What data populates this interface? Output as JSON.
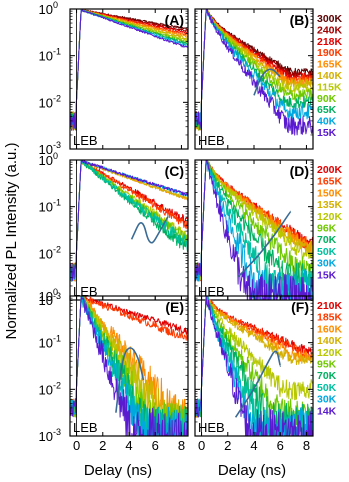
{
  "figure": {
    "ylabel": "Normalized PL Intensity (a.u.)",
    "xlabel": "Delay (ns)"
  },
  "chart_data": [
    {
      "id": "A",
      "type": "line",
      "letter": "(A)",
      "corner_label": "LEB",
      "xlim": [
        -0.5,
        8.5
      ],
      "ylim": [
        -3,
        0
      ],
      "y_scale": "log",
      "x_ticks": [
        "0",
        "2",
        "4",
        "6",
        "8"
      ],
      "y_ticks": [
        "10^0",
        "10^-1",
        "10^-2",
        "10^-3"
      ],
      "y_ticklabels": [
        "10",
        "10",
        "10",
        "10"
      ],
      "y_tickexps": [
        "0",
        "-1",
        "-2",
        "-3"
      ],
      "series": [
        {
          "label": "300K",
          "color": "#5a0000",
          "decay_per_ns": 0.05,
          "floor": -1.6,
          "noise": 0.02,
          "rise": "slow"
        },
        {
          "label": "240K",
          "color": "#a00000",
          "decay_per_ns": 0.055,
          "floor": -1.6,
          "noise": 0.02,
          "rise": "slow"
        },
        {
          "label": "218K",
          "color": "#e00000",
          "decay_per_ns": 0.06,
          "floor": -1.6,
          "noise": 0.02,
          "rise": "slow"
        },
        {
          "label": "190K",
          "color": "#ff3a00",
          "decay_per_ns": 0.065,
          "floor": -1.6,
          "noise": 0.02,
          "rise": "slow"
        },
        {
          "label": "165K",
          "color": "#ff8c00",
          "decay_per_ns": 0.07,
          "floor": -1.6,
          "noise": 0.02,
          "rise": "slow"
        },
        {
          "label": "140K",
          "color": "#d4b000",
          "decay_per_ns": 0.075,
          "floor": -1.6,
          "noise": 0.02,
          "rise": "slow"
        },
        {
          "label": "115K",
          "color": "#b7c800",
          "decay_per_ns": 0.08,
          "floor": -1.6,
          "noise": 0.02,
          "rise": "slow"
        },
        {
          "label": "90K",
          "color": "#6fc800",
          "decay_per_ns": 0.085,
          "floor": -1.6,
          "noise": 0.02,
          "rise": "slow"
        },
        {
          "label": "65K",
          "color": "#00b060",
          "decay_per_ns": 0.09,
          "floor": -1.6,
          "noise": 0.02,
          "rise": "slow"
        },
        {
          "label": "40K",
          "color": "#00a8e0",
          "decay_per_ns": 0.095,
          "floor": -1.6,
          "noise": 0.02,
          "rise": "slow"
        },
        {
          "label": "15K",
          "color": "#5a1ad0",
          "decay_per_ns": 0.1,
          "floor": -1.6,
          "noise": 0.02,
          "rise": "slow"
        }
      ],
      "arrow": null
    },
    {
      "id": "B",
      "type": "line",
      "letter": "(B)",
      "corner_label": "HEB",
      "xlim": [
        -0.5,
        8.5
      ],
      "ylim": [
        -3,
        0
      ],
      "y_scale": "log",
      "x_ticks": [
        "0",
        "2",
        "4",
        "6",
        "8"
      ],
      "series": [
        {
          "label": "300K",
          "color": "#5a0000",
          "decay_per_ns": 0.17,
          "floor": -1.35,
          "noise": 0.04,
          "rise": "fast"
        },
        {
          "label": "240K",
          "color": "#a00000",
          "decay_per_ns": 0.18,
          "floor": -1.4,
          "noise": 0.04,
          "rise": "fast"
        },
        {
          "label": "218K",
          "color": "#e00000",
          "decay_per_ns": 0.19,
          "floor": -1.45,
          "noise": 0.04,
          "rise": "fast"
        },
        {
          "label": "190K",
          "color": "#ff3a00",
          "decay_per_ns": 0.2,
          "floor": -1.5,
          "noise": 0.04,
          "rise": "fast"
        },
        {
          "label": "165K",
          "color": "#ff8c00",
          "decay_per_ns": 0.21,
          "floor": -1.55,
          "noise": 0.04,
          "rise": "fast"
        },
        {
          "label": "140K",
          "color": "#d4b000",
          "decay_per_ns": 0.22,
          "floor": -1.6,
          "noise": 0.04,
          "rise": "fast"
        },
        {
          "label": "115K",
          "color": "#b7c800",
          "decay_per_ns": 0.24,
          "floor": -1.7,
          "noise": 0.04,
          "rise": "fast"
        },
        {
          "label": "90K",
          "color": "#6fc800",
          "decay_per_ns": 0.26,
          "floor": -1.85,
          "noise": 0.05,
          "rise": "fast"
        },
        {
          "label": "65K",
          "color": "#00b060",
          "decay_per_ns": 0.29,
          "floor": -2.0,
          "noise": 0.05,
          "rise": "fast"
        },
        {
          "label": "40K",
          "color": "#00a8e0",
          "decay_per_ns": 0.32,
          "floor": -2.2,
          "noise": 0.06,
          "rise": "fast"
        },
        {
          "label": "15K",
          "color": "#5a1ad0",
          "decay_per_ns": 0.36,
          "floor": -2.5,
          "noise": 0.06,
          "rise": "fast"
        }
      ],
      "arrow": {
        "points": [
          [
            4.0,
            -1.85
          ],
          [
            4.6,
            -1.4
          ],
          [
            5.3,
            -1.25
          ],
          [
            6.0,
            -1.45
          ]
        ]
      }
    },
    {
      "id": "C",
      "type": "line",
      "letter": "(C)",
      "corner_label": "LEB",
      "xlim": [
        -0.5,
        8.5
      ],
      "ylim": [
        -3,
        0
      ],
      "y_scale": "log",
      "x_ticks": [
        "0",
        "2",
        "4",
        "6",
        "8"
      ],
      "y_ticks": [
        "10^0",
        "10^-1",
        "10^-2",
        "10^-3"
      ],
      "y_ticklabels": [
        "10",
        "10",
        "10",
        "10"
      ],
      "y_tickexps": [
        "0",
        "-1",
        "-2",
        "-3"
      ],
      "series": [
        {
          "label": "200K",
          "color": "#e00000",
          "decay_per_ns": 0.16,
          "floor": -2.0,
          "noise": 0.05,
          "rise": "slow"
        },
        {
          "label": "165K",
          "color": "#ff3a00",
          "decay_per_ns": 0.17,
          "floor": -2.0,
          "noise": 0.05,
          "rise": "slow"
        },
        {
          "label": "150K",
          "color": "#ff8c00",
          "decay_per_ns": 0.1,
          "floor": -1.1,
          "noise": 0.03,
          "rise": "slow"
        },
        {
          "label": "135K",
          "color": "#d4b000",
          "decay_per_ns": 0.1,
          "floor": -1.1,
          "noise": 0.03,
          "rise": "slow"
        },
        {
          "label": "120K",
          "color": "#b7c800",
          "decay_per_ns": 0.2,
          "floor": -1.9,
          "noise": 0.05,
          "rise": "slow"
        },
        {
          "label": "96K",
          "color": "#6fc800",
          "decay_per_ns": 0.21,
          "floor": -1.9,
          "noise": 0.05,
          "rise": "slow"
        },
        {
          "label": "70K",
          "color": "#00b060",
          "decay_per_ns": 0.23,
          "floor": -2.0,
          "noise": 0.06,
          "rise": "slow"
        },
        {
          "label": "50K",
          "color": "#00c0a0",
          "decay_per_ns": 0.22,
          "floor": -2.0,
          "noise": 0.06,
          "rise": "slow"
        },
        {
          "label": "30K",
          "color": "#00a8e0",
          "decay_per_ns": 0.09,
          "floor": -1.0,
          "noise": 0.03,
          "rise": "slow"
        },
        {
          "label": "15K",
          "color": "#5a1ad0",
          "decay_per_ns": 0.09,
          "floor": -1.0,
          "noise": 0.03,
          "rise": "slow"
        }
      ],
      "arrow": {
        "points": [
          [
            4.2,
            -1.7
          ],
          [
            5.0,
            -1.2
          ],
          [
            5.6,
            -1.9
          ],
          [
            6.4,
            -1.5
          ],
          [
            7.0,
            -1.2
          ]
        ]
      }
    },
    {
      "id": "D",
      "type": "line",
      "letter": "(D)",
      "corner_label": "HEB",
      "xlim": [
        -0.5,
        8.5
      ],
      "ylim": [
        -3,
        0
      ],
      "y_scale": "log",
      "x_ticks": [
        "0",
        "2",
        "4",
        "6",
        "8"
      ],
      "series": [
        {
          "label": "200K",
          "color": "#e00000",
          "decay_per_ns": 0.2,
          "floor": -1.8,
          "noise": 0.06,
          "rise": "fast"
        },
        {
          "label": "165K",
          "color": "#ff3a00",
          "decay_per_ns": 0.2,
          "floor": -1.8,
          "noise": 0.06,
          "rise": "fast"
        },
        {
          "label": "150K",
          "color": "#ff8c00",
          "decay_per_ns": 0.21,
          "floor": -1.9,
          "noise": 0.06,
          "rise": "fast"
        },
        {
          "label": "135K",
          "color": "#d4b000",
          "decay_per_ns": 0.22,
          "floor": -1.9,
          "noise": 0.06,
          "rise": "fast"
        },
        {
          "label": "120K",
          "color": "#b7c800",
          "decay_per_ns": 0.24,
          "floor": -2.0,
          "noise": 0.06,
          "rise": "fast"
        },
        {
          "label": "96K",
          "color": "#6fc800",
          "decay_per_ns": 0.3,
          "floor": -2.3,
          "noise": 0.08,
          "rise": "fast"
        },
        {
          "label": "70K",
          "color": "#00b060",
          "decay_per_ns": 0.38,
          "floor": -2.5,
          "noise": 0.09,
          "rise": "fast"
        },
        {
          "label": "50K",
          "color": "#00c0a0",
          "decay_per_ns": 0.5,
          "floor": -2.7,
          "noise": 0.1,
          "rise": "fast"
        },
        {
          "label": "30K",
          "color": "#00a8e0",
          "decay_per_ns": 0.65,
          "floor": -2.8,
          "noise": 0.12,
          "rise": "fast"
        },
        {
          "label": "15K",
          "color": "#5a1ad0",
          "decay_per_ns": 0.85,
          "floor": -2.9,
          "noise": 0.12,
          "rise": "fast"
        }
      ],
      "arrow": {
        "points": [
          [
            2.8,
            -2.5
          ],
          [
            4.2,
            -2.1
          ],
          [
            5.6,
            -1.6
          ],
          [
            6.8,
            -1.1
          ]
        ]
      }
    },
    {
      "id": "E",
      "type": "line",
      "letter": "(E)",
      "corner_label": "LEB",
      "xlim": [
        -0.5,
        8.5
      ],
      "ylim": [
        -3,
        0
      ],
      "y_scale": "log",
      "x_ticks": [
        "0",
        "2",
        "4",
        "6",
        "8"
      ],
      "x_ticklabels": [
        "0",
        "2",
        "4",
        "6",
        "8"
      ],
      "y_ticks": [
        "10^0",
        "10^-1",
        "10^-2",
        "10^-3"
      ],
      "y_ticklabels": [
        "10",
        "10",
        "10",
        "10"
      ],
      "y_tickexps": [
        "0",
        "-1",
        "-2",
        "-3"
      ],
      "series": [
        {
          "label": "210K",
          "color": "#e00000",
          "decay_per_ns": 0.09,
          "floor": -1.1,
          "noise": 0.06,
          "rise": "slow"
        },
        {
          "label": "185K",
          "color": "#ff3a00",
          "decay_per_ns": 0.11,
          "floor": -1.3,
          "noise": 0.07,
          "rise": "slow"
        },
        {
          "label": "160K",
          "color": "#ff8c00",
          "decay_per_ns": 0.35,
          "floor": -2.6,
          "noise": 0.14,
          "rise": "slow"
        },
        {
          "label": "140K",
          "color": "#d4b000",
          "decay_per_ns": 0.4,
          "floor": -2.7,
          "noise": 0.14,
          "rise": "slow"
        },
        {
          "label": "120K",
          "color": "#b7c800",
          "decay_per_ns": 0.45,
          "floor": -2.8,
          "noise": 0.14,
          "rise": "slow"
        },
        {
          "label": "95K",
          "color": "#6fc800",
          "decay_per_ns": 0.5,
          "floor": -2.8,
          "noise": 0.14,
          "rise": "slow"
        },
        {
          "label": "70K",
          "color": "#00b060",
          "decay_per_ns": 0.55,
          "floor": -2.9,
          "noise": 0.14,
          "rise": "slow"
        },
        {
          "label": "50K",
          "color": "#00c0a0",
          "decay_per_ns": 0.6,
          "floor": -2.9,
          "noise": 0.14,
          "rise": "slow"
        },
        {
          "label": "30K",
          "color": "#00a8e0",
          "decay_per_ns": 0.65,
          "floor": -2.9,
          "noise": 0.14,
          "rise": "slow"
        },
        {
          "label": "14K",
          "color": "#5a1ad0",
          "decay_per_ns": 0.75,
          "floor": -2.95,
          "noise": 0.14,
          "rise": "slow"
        }
      ],
      "arrow": {
        "points": [
          [
            3.0,
            -2.5
          ],
          [
            3.5,
            -1.3
          ],
          [
            4.1,
            -1.05
          ],
          [
            4.7,
            -1.3
          ],
          [
            5.1,
            -1.8
          ]
        ]
      }
    },
    {
      "id": "F",
      "type": "line",
      "letter": "(F)",
      "corner_label": "HEB",
      "xlim": [
        -0.5,
        8.5
      ],
      "ylim": [
        -3,
        0
      ],
      "y_scale": "log",
      "x_ticks": [
        "0",
        "2",
        "4",
        "6",
        "8"
      ],
      "x_ticklabels": [
        "0",
        "2",
        "4",
        "6",
        "8"
      ],
      "series": [
        {
          "label": "210K",
          "color": "#e00000",
          "decay_per_ns": 0.12,
          "floor": -1.2,
          "noise": 0.06,
          "rise": "fast"
        },
        {
          "label": "185K",
          "color": "#ff3a00",
          "decay_per_ns": 0.13,
          "floor": -1.25,
          "noise": 0.06,
          "rise": "fast"
        },
        {
          "label": "160K",
          "color": "#ff8c00",
          "decay_per_ns": 0.15,
          "floor": -1.3,
          "noise": 0.06,
          "rise": "fast"
        },
        {
          "label": "140K",
          "color": "#d4b000",
          "decay_per_ns": 0.17,
          "floor": -1.35,
          "noise": 0.06,
          "rise": "fast"
        },
        {
          "label": "120K",
          "color": "#b7c800",
          "decay_per_ns": 0.3,
          "floor": -2.0,
          "noise": 0.08,
          "rise": "fast"
        },
        {
          "label": "95K",
          "color": "#6fc800",
          "decay_per_ns": 0.4,
          "floor": -2.5,
          "noise": 0.1,
          "rise": "fast"
        },
        {
          "label": "70K",
          "color": "#00b060",
          "decay_per_ns": 0.5,
          "floor": -2.7,
          "noise": 0.12,
          "rise": "fast"
        },
        {
          "label": "50K",
          "color": "#00c0a0",
          "decay_per_ns": 0.6,
          "floor": -2.8,
          "noise": 0.12,
          "rise": "fast"
        },
        {
          "label": "30K",
          "color": "#00a8e0",
          "decay_per_ns": 0.7,
          "floor": -2.85,
          "noise": 0.12,
          "rise": "fast"
        },
        {
          "label": "14K",
          "color": "#5a1ad0",
          "decay_per_ns": 0.8,
          "floor": -2.9,
          "noise": 0.12,
          "rise": "fast"
        }
      ],
      "arrow": {
        "points": [
          [
            2.6,
            -2.6
          ],
          [
            4.0,
            -2.0
          ],
          [
            5.1,
            -1.4
          ],
          [
            5.7,
            -1.1
          ],
          [
            6.0,
            -1.5
          ]
        ]
      }
    }
  ]
}
